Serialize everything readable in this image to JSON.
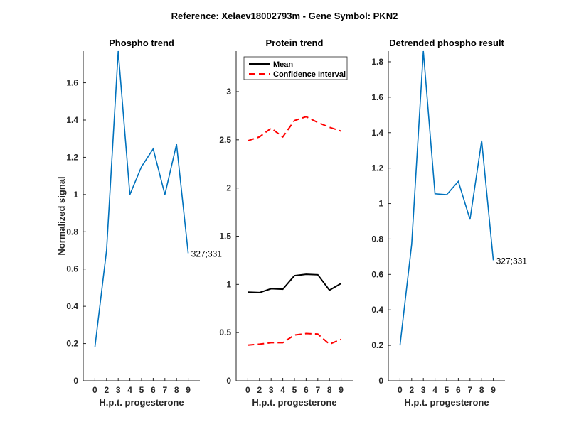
{
  "suptitle": "Reference:  Xelaev18002793m - Gene Symbol:  PKN2",
  "chart_data": [
    {
      "type": "line",
      "title": "Phospho trend",
      "xlabel": "H.p.t. progesterone",
      "ylabel": "Normalized signal",
      "categories": [
        "0",
        "2",
        "3",
        "4",
        "5",
        "6",
        "7",
        "8",
        "9"
      ],
      "xlim": [
        0,
        10
      ],
      "ylim": [
        0,
        1.77
      ],
      "yticks": [
        "0",
        "0.2",
        "0.4",
        "0.6",
        "0.8",
        "1",
        "1.2",
        "1.4",
        "1.6"
      ],
      "series": [
        {
          "name": "327;331",
          "color": "#0072BD",
          "values": [
            0.18,
            0.7,
            1.77,
            1.0,
            1.15,
            1.245,
            1.0,
            1.27,
            0.685
          ]
        }
      ],
      "annotation": "327;331"
    },
    {
      "type": "line",
      "title": "Protein trend",
      "xlabel": "H.p.t. progesterone",
      "ylabel": "",
      "categories": [
        "0",
        "2",
        "3",
        "4",
        "5",
        "6",
        "7",
        "8",
        "9"
      ],
      "xlim": [
        0,
        10
      ],
      "ylim": [
        0,
        3.42
      ],
      "yticks": [
        "0",
        "0.5",
        "1",
        "1.5",
        "2",
        "2.5",
        "3"
      ],
      "legend": {
        "placement": "top-left",
        "entries": [
          "Mean",
          "Confidence Interval"
        ]
      },
      "series": [
        {
          "name": "Mean",
          "color": "#000000",
          "style": "solid",
          "values": [
            0.92,
            0.915,
            0.955,
            0.95,
            1.09,
            1.105,
            1.1,
            0.94,
            1.01
          ]
        },
        {
          "name": "Confidence Interval upper",
          "color": "#FF0000",
          "style": "dashed",
          "values": [
            2.49,
            2.53,
            2.62,
            2.53,
            2.7,
            2.74,
            2.68,
            2.63,
            2.59
          ]
        },
        {
          "name": "Confidence Interval lower",
          "color": "#FF0000",
          "style": "dashed",
          "values": [
            0.37,
            0.38,
            0.395,
            0.395,
            0.475,
            0.49,
            0.485,
            0.38,
            0.43
          ]
        }
      ]
    },
    {
      "type": "line",
      "title": "Detrended phospho result",
      "xlabel": "H.p.t. progesterone",
      "ylabel": "",
      "categories": [
        "0",
        "2",
        "3",
        "4",
        "5",
        "6",
        "7",
        "8",
        "9"
      ],
      "xlim": [
        0,
        10
      ],
      "ylim": [
        0,
        1.86
      ],
      "yticks": [
        "0",
        "0.2",
        "0.4",
        "0.6",
        "0.8",
        "1",
        "1.2",
        "1.4",
        "1.6",
        "1.8"
      ],
      "series": [
        {
          "name": "327;331",
          "color": "#0072BD",
          "values": [
            0.2,
            0.77,
            1.86,
            1.055,
            1.05,
            1.125,
            0.91,
            1.355,
            0.68
          ]
        }
      ],
      "annotation": "327;331"
    }
  ]
}
